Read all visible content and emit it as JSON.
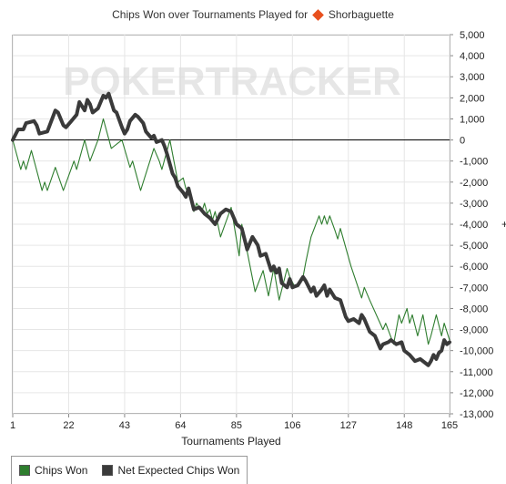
{
  "chart_title": "Chips Won over Tournaments Played for",
  "player_name": "Shorbaguette",
  "watermark": "POKERTRACKER",
  "colors": {
    "chips_won": "#2e7d2e",
    "net_expected": "#3a3a3a",
    "zero_line": "#000000",
    "grid": "#e6e6e6",
    "brand_diamond": "#e8501e"
  },
  "chart_data": {
    "type": "line",
    "title": "Chips Won over Tournaments Played for Shorbaguette",
    "xlabel": "Tournaments Played",
    "ylabel": "",
    "xlim": [
      1,
      165
    ],
    "ylim": [
      -13000,
      5000
    ],
    "x_ticks": [
      1,
      22,
      43,
      64,
      85,
      106,
      127,
      148,
      165
    ],
    "y_ticks": [
      5000,
      4000,
      3000,
      2000,
      1000,
      0,
      -1000,
      -2000,
      -3000,
      -4000,
      -5000,
      -6000,
      -7000,
      -8000,
      -9000,
      -10000,
      -11000,
      -12000,
      -13000
    ],
    "y_tick_labels": [
      "5,000",
      "4,000",
      "3,000",
      "2,000",
      "1,000",
      "0",
      "-1,000",
      "-2,000",
      "-3,000",
      "-4,000",
      "-5,000",
      "-6,000",
      "-7,000",
      "-8,000",
      "-9,000",
      "-10,000",
      "-11,000",
      "-12,000",
      "-13,000"
    ],
    "grid": true,
    "legend_position": "bottom-left",
    "series": [
      {
        "name": "Chips Won",
        "color": "#2e7d2e",
        "points": [
          [
            1,
            0
          ],
          [
            4,
            -1400
          ],
          [
            5,
            -1000
          ],
          [
            6,
            -1400
          ],
          [
            8,
            -500
          ],
          [
            12,
            -2400
          ],
          [
            13,
            -2000
          ],
          [
            14,
            -2400
          ],
          [
            17,
            -1300
          ],
          [
            20,
            -2400
          ],
          [
            24,
            -1000
          ],
          [
            25,
            -1400
          ],
          [
            28,
            0
          ],
          [
            30,
            -1000
          ],
          [
            33,
            0
          ],
          [
            35,
            1000
          ],
          [
            38,
            -400
          ],
          [
            39,
            -300
          ],
          [
            42,
            0
          ],
          [
            45,
            -1300
          ],
          [
            46,
            -1000
          ],
          [
            49,
            -2400
          ],
          [
            54,
            -400
          ],
          [
            55,
            -700
          ],
          [
            56,
            -1000
          ],
          [
            57,
            -1400
          ],
          [
            60,
            0
          ],
          [
            63,
            -2000
          ],
          [
            65,
            -1800
          ],
          [
            66,
            -2300
          ],
          [
            67,
            -2500
          ],
          [
            69,
            -3400
          ],
          [
            70,
            -3000
          ],
          [
            72,
            -3400
          ],
          [
            73,
            -3000
          ],
          [
            74,
            -3500
          ],
          [
            75,
            -3300
          ],
          [
            76,
            -3800
          ],
          [
            77,
            -3400
          ],
          [
            79,
            -4600
          ],
          [
            83,
            -3200
          ],
          [
            86,
            -5500
          ],
          [
            87,
            -4000
          ],
          [
            92,
            -7200
          ],
          [
            95,
            -6200
          ],
          [
            97,
            -7400
          ],
          [
            99,
            -6100
          ],
          [
            101,
            -7600
          ],
          [
            104,
            -6100
          ],
          [
            105,
            -6500
          ],
          [
            107,
            -7000
          ],
          [
            110,
            -6500
          ],
          [
            111,
            -5800
          ],
          [
            113,
            -4600
          ],
          [
            116,
            -3600
          ],
          [
            117,
            -4000
          ],
          [
            118,
            -3600
          ],
          [
            119,
            -4000
          ],
          [
            120,
            -3600
          ],
          [
            122,
            -4300
          ],
          [
            123,
            -4700
          ],
          [
            124,
            -4200
          ],
          [
            128,
            -6000
          ],
          [
            132,
            -7500
          ],
          [
            133,
            -7000
          ],
          [
            135,
            -7600
          ],
          [
            140,
            -9000
          ],
          [
            141,
            -8700
          ],
          [
            144,
            -9700
          ],
          [
            146,
            -8300
          ],
          [
            147,
            -8700
          ],
          [
            149,
            -8000
          ],
          [
            150,
            -8700
          ],
          [
            151,
            -8300
          ],
          [
            153,
            -9300
          ],
          [
            155,
            -8300
          ],
          [
            157,
            -9700
          ],
          [
            158,
            -9300
          ],
          [
            160,
            -8300
          ],
          [
            162,
            -9300
          ],
          [
            163,
            -8700
          ],
          [
            165,
            -9500
          ]
        ]
      },
      {
        "name": "Net Expected Chips Won",
        "color": "#3a3a3a",
        "points": [
          [
            1,
            0
          ],
          [
            3,
            500
          ],
          [
            5,
            500
          ],
          [
            6,
            800
          ],
          [
            9,
            900
          ],
          [
            10,
            700
          ],
          [
            11,
            300
          ],
          [
            14,
            400
          ],
          [
            17,
            1400
          ],
          [
            18,
            1300
          ],
          [
            20,
            700
          ],
          [
            21,
            600
          ],
          [
            23,
            900
          ],
          [
            25,
            1200
          ],
          [
            26,
            1800
          ],
          [
            28,
            1400
          ],
          [
            29,
            1900
          ],
          [
            30,
            1700
          ],
          [
            31,
            1300
          ],
          [
            33,
            1500
          ],
          [
            35,
            2100
          ],
          [
            36,
            2000
          ],
          [
            37,
            2200
          ],
          [
            39,
            1400
          ],
          [
            40,
            1300
          ],
          [
            42,
            600
          ],
          [
            43,
            300
          ],
          [
            44,
            500
          ],
          [
            45,
            900
          ],
          [
            47,
            1200
          ],
          [
            48,
            1100
          ],
          [
            50,
            800
          ],
          [
            51,
            400
          ],
          [
            53,
            100
          ],
          [
            54,
            200
          ],
          [
            55,
            -100
          ],
          [
            57,
            0
          ],
          [
            58,
            -300
          ],
          [
            59,
            -700
          ],
          [
            61,
            -1600
          ],
          [
            62,
            -1800
          ],
          [
            63,
            -2200
          ],
          [
            65,
            -2500
          ],
          [
            66,
            -2700
          ],
          [
            67,
            -2300
          ],
          [
            68,
            -2800
          ],
          [
            69,
            -3300
          ],
          [
            71,
            -3200
          ],
          [
            73,
            -3500
          ],
          [
            75,
            -3700
          ],
          [
            77,
            -4000
          ],
          [
            79,
            -3500
          ],
          [
            81,
            -3300
          ],
          [
            83,
            -3400
          ],
          [
            85,
            -4000
          ],
          [
            87,
            -4200
          ],
          [
            89,
            -5200
          ],
          [
            91,
            -4600
          ],
          [
            93,
            -5000
          ],
          [
            94,
            -5500
          ],
          [
            96,
            -5400
          ],
          [
            98,
            -6200
          ],
          [
            99,
            -6000
          ],
          [
            100,
            -6300
          ],
          [
            101,
            -6100
          ],
          [
            102,
            -6800
          ],
          [
            104,
            -7000
          ],
          [
            105,
            -6600
          ],
          [
            106,
            -7000
          ],
          [
            108,
            -6900
          ],
          [
            110,
            -6500
          ],
          [
            111,
            -6700
          ],
          [
            113,
            -7200
          ],
          [
            114,
            -7000
          ],
          [
            115,
            -7400
          ],
          [
            117,
            -7100
          ],
          [
            118,
            -6900
          ],
          [
            119,
            -7400
          ],
          [
            120,
            -7100
          ],
          [
            121,
            -7300
          ],
          [
            122,
            -7500
          ],
          [
            124,
            -7600
          ],
          [
            126,
            -8400
          ],
          [
            127,
            -8600
          ],
          [
            129,
            -8500
          ],
          [
            131,
            -8700
          ],
          [
            132,
            -8300
          ],
          [
            133,
            -8500
          ],
          [
            135,
            -9100
          ],
          [
            137,
            -9300
          ],
          [
            139,
            -9900
          ],
          [
            140,
            -9700
          ],
          [
            142,
            -9600
          ],
          [
            143,
            -9500
          ],
          [
            145,
            -9700
          ],
          [
            147,
            -9600
          ],
          [
            148,
            -10000
          ],
          [
            150,
            -10200
          ],
          [
            152,
            -10500
          ],
          [
            154,
            -10400
          ],
          [
            156,
            -10600
          ],
          [
            157,
            -10700
          ],
          [
            158,
            -10500
          ],
          [
            159,
            -10200
          ],
          [
            160,
            -10400
          ],
          [
            161,
            -10100
          ],
          [
            162,
            -10000
          ],
          [
            163,
            -9500
          ],
          [
            164,
            -9700
          ],
          [
            165,
            -9600
          ]
        ]
      }
    ]
  }
}
